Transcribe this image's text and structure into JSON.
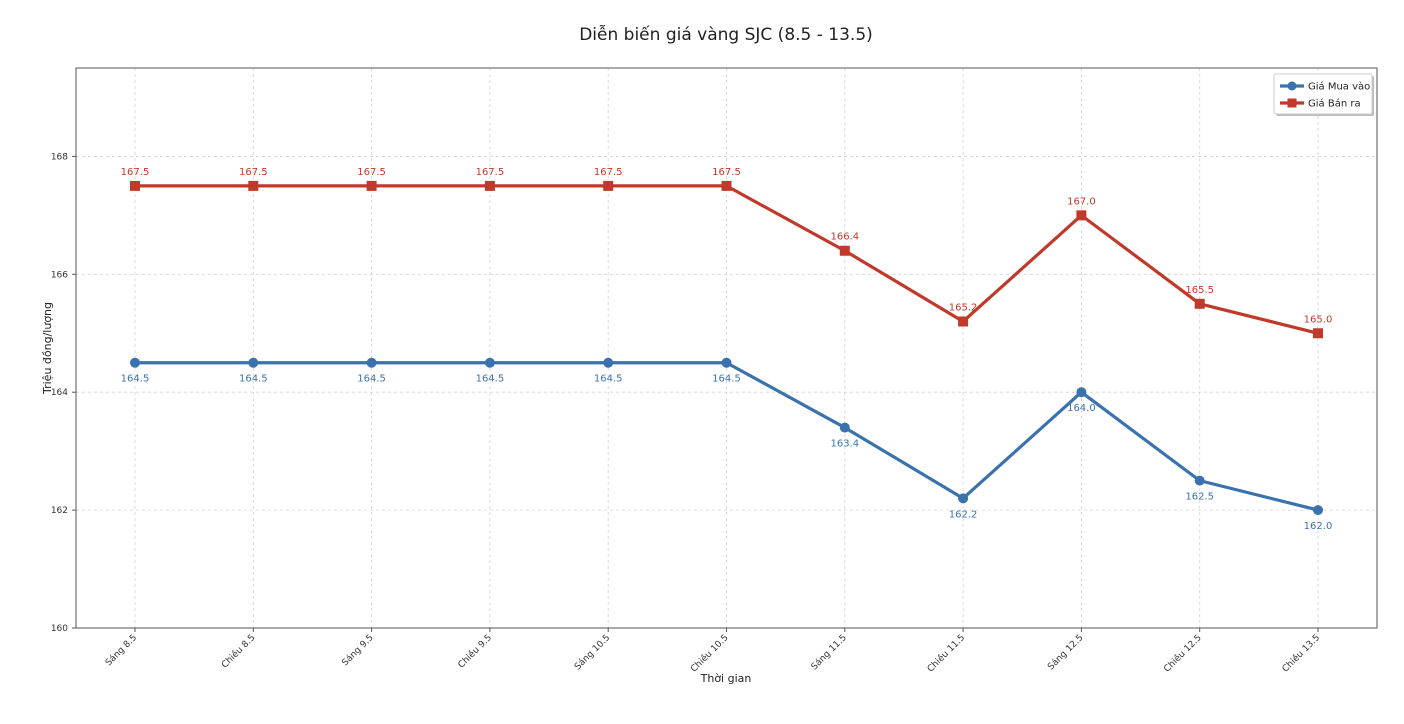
{
  "chart_data": {
    "type": "line",
    "title": "Diễn biến giá vàng SJC (8.5 - 13.5)",
    "xlabel": "Thời gian",
    "ylabel": "Triệu đồng/lượng",
    "ylim": [
      160,
      169.5
    ],
    "yticks": [
      "160",
      "162",
      "164",
      "166",
      "168"
    ],
    "grid": true,
    "legend_position": "top-right",
    "categories": [
      "Sáng 8.5",
      "Chiều 8.5",
      "Sáng 9.5",
      "Chiều 9.5",
      "Sáng 10.5",
      "Chiều 10.5",
      "Sáng 11.5",
      "Chiều 11.5",
      "Sáng 12.5",
      "Chiều 12.5",
      "Chiều 13.5"
    ],
    "series": [
      {
        "name": "Giá Mua vào",
        "color": "#3a72ad",
        "marker": "circle",
        "label_position": "below",
        "values": [
          164.5,
          164.5,
          164.5,
          164.5,
          164.5,
          164.5,
          163.4,
          162.2,
          164.0,
          162.5,
          162.0
        ],
        "labels": [
          "164.5",
          "164.5",
          "164.5",
          "164.5",
          "164.5",
          "164.5",
          "163.4",
          "162.2",
          "164.0",
          "162.5",
          "162.0"
        ]
      },
      {
        "name": "Giá Bán ra",
        "color": "#c0392b",
        "marker": "square",
        "label_position": "above",
        "values": [
          167.5,
          167.5,
          167.5,
          167.5,
          167.5,
          167.5,
          166.4,
          165.2,
          167.0,
          165.5,
          165.0
        ],
        "labels": [
          "167.5",
          "167.5",
          "167.5",
          "167.5",
          "167.5",
          "167.5",
          "166.4",
          "165.2",
          "167.0",
          "165.5",
          "165.0"
        ]
      }
    ]
  }
}
